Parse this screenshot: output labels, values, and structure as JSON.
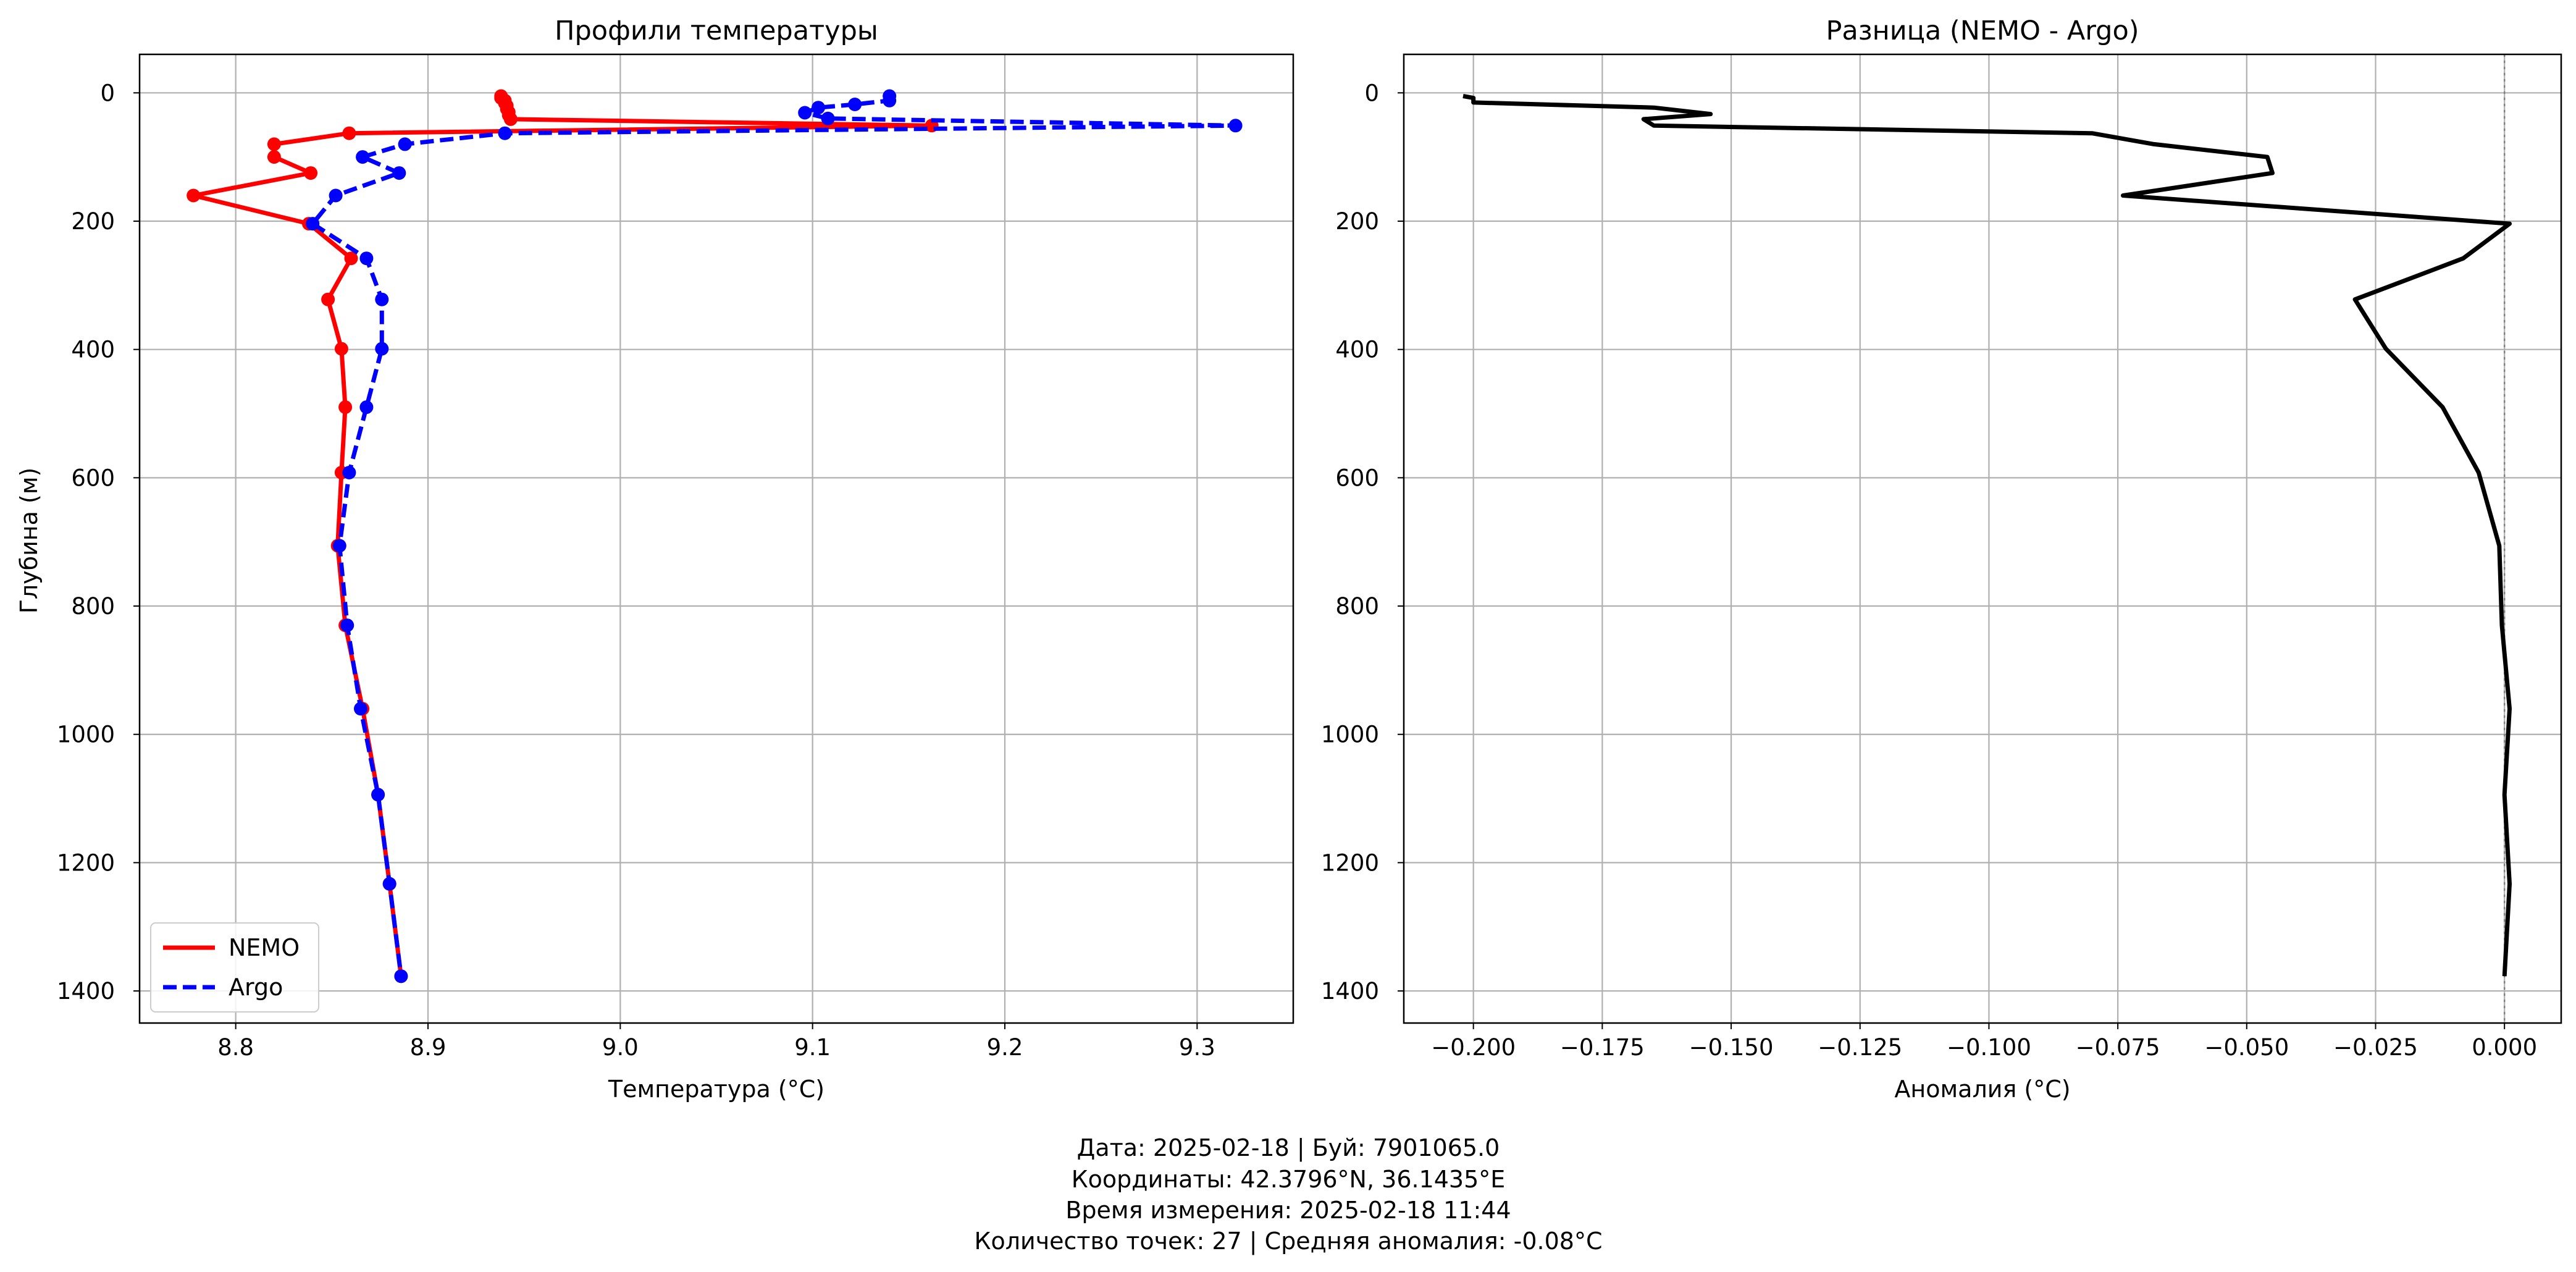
{
  "figure": {
    "footer": [
      "Дата: 2025-02-18 | Буй: 7901065.0",
      "Координаты: 42.3796°N, 36.1435°E",
      "Время измерения: 2025-02-18 11:44",
      "Количество точек: 27 | Средняя аномалия: -0.08°C"
    ]
  },
  "chart_data": [
    {
      "type": "line",
      "title": "Профили температуры",
      "xlabel": "Температура (°C)",
      "ylabel": "Глубина (м)",
      "xlim": [
        8.75,
        9.35
      ],
      "ylim": [
        1450,
        -60
      ],
      "y_inverted": true,
      "x_ticks": [
        8.8,
        8.9,
        9.0,
        9.1,
        9.2,
        9.3
      ],
      "x_tick_labels": [
        "8.8",
        "8.9",
        "9.0",
        "9.1",
        "9.2",
        "9.3"
      ],
      "y_ticks": [
        0,
        200,
        400,
        600,
        800,
        1000,
        1200,
        1400
      ],
      "y_tick_labels": [
        "0",
        "200",
        "400",
        "600",
        "800",
        "1000",
        "1200",
        "1400"
      ],
      "grid": true,
      "legend": "lower-left",
      "series": [
        {
          "name": "NEMO",
          "color": "#ff0000",
          "linestyle": "solid",
          "marker": "circle",
          "points": [
            [
              8.938,
              5
            ],
            [
              8.938,
              8
            ],
            [
              8.94,
              12
            ],
            [
              8.94,
              16
            ],
            [
              8.941,
              20
            ],
            [
              8.941,
              25
            ],
            [
              8.942,
              30
            ],
            [
              8.942,
              35
            ],
            [
              8.943,
              41
            ],
            [
              9.162,
              51
            ],
            [
              8.859,
              63
            ],
            [
              8.82,
              80
            ],
            [
              8.82,
              100
            ],
            [
              8.839,
              125
            ],
            [
              8.778,
              160
            ],
            [
              8.838,
              204
            ],
            [
              8.86,
              258
            ],
            [
              8.848,
              322
            ],
            [
              8.855,
              399
            ],
            [
              8.857,
              490
            ],
            [
              8.855,
              592
            ],
            [
              8.853,
              706
            ],
            [
              8.857,
              830
            ],
            [
              8.866,
              960
            ],
            [
              8.874,
              1094
            ],
            [
              8.88,
              1233
            ],
            [
              8.886,
              1377
            ]
          ]
        },
        {
          "name": "Argo",
          "color": "#0000ff",
          "linestyle": "dashed",
          "marker": "circle",
          "points": [
            [
              9.14,
              5
            ],
            [
              9.14,
              12
            ],
            [
              9.122,
              18
            ],
            [
              9.103,
              23
            ],
            [
              9.096,
              31
            ],
            [
              9.108,
              40
            ],
            [
              9.32,
              51
            ],
            [
              8.94,
              63
            ],
            [
              8.888,
              80
            ],
            [
              8.866,
              100
            ],
            [
              8.885,
              125
            ],
            [
              8.852,
              160
            ],
            [
              8.84,
              204
            ],
            [
              8.868,
              258
            ],
            [
              8.876,
              322
            ],
            [
              8.876,
              399
            ],
            [
              8.868,
              490
            ],
            [
              8.859,
              592
            ],
            [
              8.854,
              706
            ],
            [
              8.858,
              830
            ],
            [
              8.865,
              960
            ],
            [
              8.874,
              1094
            ],
            [
              8.88,
              1233
            ],
            [
              8.886,
              1377
            ]
          ]
        }
      ]
    },
    {
      "type": "line",
      "title": "Разница (NEMO - Argo)",
      "xlabel": "Аномалия (°C)",
      "ylabel": "",
      "xlim": [
        -0.2135,
        0.011
      ],
      "ylim": [
        1450,
        -60
      ],
      "y_inverted": true,
      "x_ticks": [
        -0.2,
        -0.175,
        -0.15,
        -0.125,
        -0.1,
        -0.075,
        -0.05,
        -0.025,
        0.0
      ],
      "x_tick_labels": [
        "−0.200",
        "−0.175",
        "−0.150",
        "−0.125",
        "−0.100",
        "−0.075",
        "−0.050",
        "−0.025",
        "0.000"
      ],
      "y_ticks": [
        0,
        200,
        400,
        600,
        800,
        1000,
        1200,
        1400
      ],
      "y_tick_labels": [
        "0",
        "200",
        "400",
        "600",
        "800",
        "1000",
        "1200",
        "1400"
      ],
      "grid": true,
      "reference_line": {
        "x": 0,
        "color": "#808080",
        "linestyle": "dotted"
      },
      "series": [
        {
          "name": "",
          "color": "#000000",
          "linestyle": "solid",
          "marker": "none",
          "points": [
            [
              -0.202,
              5
            ],
            [
              -0.2,
              8
            ],
            [
              -0.2,
              15
            ],
            [
              -0.165,
              23
            ],
            [
              -0.154,
              33
            ],
            [
              -0.167,
              41
            ],
            [
              -0.165,
              51
            ],
            [
              -0.08,
              63
            ],
            [
              -0.068,
              80
            ],
            [
              -0.046,
              100
            ],
            [
              -0.045,
              125
            ],
            [
              -0.074,
              160
            ],
            [
              0.001,
              204
            ],
            [
              -0.008,
              258
            ],
            [
              -0.029,
              322
            ],
            [
              -0.023,
              399
            ],
            [
              -0.012,
              490
            ],
            [
              -0.005,
              592
            ],
            [
              -0.001,
              706
            ],
            [
              -0.0005,
              830
            ],
            [
              0.001,
              960
            ],
            [
              0.0,
              1094
            ],
            [
              0.001,
              1233
            ],
            [
              0.0,
              1377
            ]
          ]
        }
      ]
    }
  ]
}
